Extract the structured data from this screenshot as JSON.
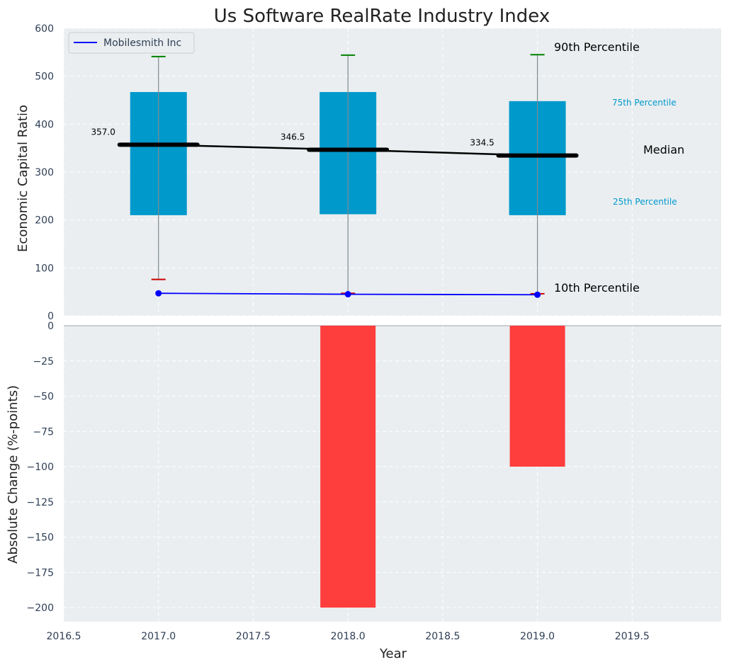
{
  "chart_data": [
    {
      "panel": "top",
      "type": "box",
      "title": "Us Software RealRate Industry Index",
      "ylabel": "Economic Capital Ratio",
      "ylim": [
        0,
        600
      ],
      "yticks": [
        "0",
        "100",
        "200",
        "300",
        "400",
        "500",
        "600"
      ],
      "grid": true,
      "legend": {
        "placement": "top-left",
        "entries": [
          "Mobilesmith Inc"
        ]
      },
      "x": [
        2017,
        2018,
        2019
      ],
      "percentile_10": [
        76,
        47,
        46
      ],
      "percentile_25": [
        210,
        212,
        210
      ],
      "median": [
        357.0,
        346.5,
        334.5
      ],
      "median_labels": [
        "357.0",
        "346.5",
        "334.5"
      ],
      "percentile_75": [
        467,
        467,
        448
      ],
      "percentile_90": [
        541,
        544,
        545
      ],
      "series": [
        {
          "name": "Mobilesmith Inc",
          "x": [
            2017,
            2018,
            2019
          ],
          "values": [
            47,
            45,
            44
          ],
          "color": "#0000ff"
        }
      ],
      "annotations": {
        "p90": "90th Percentile",
        "p75": "75th Percentile",
        "median": "Median",
        "p25": "25th Percentile",
        "p10": "10th Percentile"
      },
      "colors": {
        "box": "#0099cc",
        "median": "#000000",
        "p90": "#008000",
        "p10": "#cc0000",
        "background": "#eaeef0"
      }
    },
    {
      "panel": "bottom",
      "type": "bar",
      "xlabel": "Year",
      "ylabel": "Absolute Change (%-points)",
      "ylim": [
        -210,
        0
      ],
      "yticks": [
        "0",
        "−25",
        "−50",
        "−75",
        "−100",
        "−125",
        "−150",
        "−175",
        "−200"
      ],
      "xlim": [
        2016.5,
        2019.97
      ],
      "xticks": [
        "2016.5",
        "2017.0",
        "2017.5",
        "2018.0",
        "2018.5",
        "2019.0",
        "2019.5"
      ],
      "x": [
        2017,
        2018,
        2019
      ],
      "values": [
        0,
        -200,
        -100
      ],
      "colors": {
        "bar": "#ff3333"
      }
    }
  ]
}
